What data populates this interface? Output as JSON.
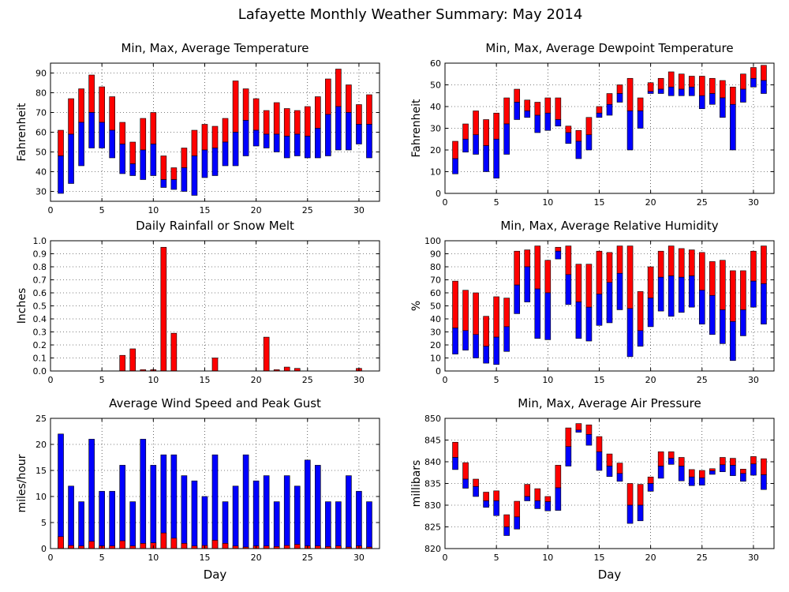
{
  "page_title": "Lafayette Monthly Weather Summary: May 2014",
  "colors": {
    "max": "#ff0000",
    "min": "#0000ff",
    "grid": "#000000",
    "frame": "#000000"
  },
  "chart_data": [
    {
      "id": "temperature",
      "type": "bar",
      "title": "Min, Max, Average Temperature",
      "ylabel": "Fahrenheit",
      "xlabel": "",
      "xlim": [
        0,
        32
      ],
      "ylim": [
        25,
        95
      ],
      "xticks": [
        0,
        5,
        10,
        15,
        20,
        25,
        30
      ],
      "yticks": [
        30,
        40,
        50,
        60,
        70,
        80,
        90
      ],
      "grid": true,
      "days": [
        1,
        2,
        3,
        4,
        5,
        6,
        7,
        8,
        9,
        10,
        11,
        12,
        13,
        14,
        15,
        16,
        17,
        18,
        19,
        20,
        21,
        22,
        23,
        24,
        25,
        26,
        27,
        28,
        29,
        30,
        31
      ],
      "max": [
        61,
        77,
        82,
        89,
        83,
        78,
        65,
        55,
        67,
        70,
        48,
        42,
        52,
        61,
        64,
        63,
        67,
        86,
        82,
        77,
        71,
        75,
        72,
        71,
        73,
        78,
        87,
        92,
        84,
        74,
        79
      ],
      "avg": [
        48,
        59,
        65,
        70,
        65,
        61,
        54,
        44,
        51,
        54,
        36,
        36,
        42,
        48,
        51,
        52,
        55,
        60,
        66,
        61,
        59,
        59,
        58,
        59,
        58,
        62,
        69,
        73,
        70,
        64,
        64
      ],
      "min": [
        29,
        34,
        43,
        52,
        52,
        47,
        39,
        38,
        36,
        38,
        32,
        31,
        30,
        28,
        37,
        38,
        43,
        43,
        48,
        53,
        52,
        50,
        47,
        48,
        47,
        47,
        48,
        51,
        51,
        54,
        47
      ]
    },
    {
      "id": "dewpoint",
      "type": "bar",
      "title": "Min, Max, Average Dewpoint Temperature",
      "ylabel": "Fahrenheit",
      "xlabel": "",
      "xlim": [
        0,
        32
      ],
      "ylim": [
        0,
        60
      ],
      "xticks": [
        0,
        5,
        10,
        15,
        20,
        25,
        30
      ],
      "yticks": [
        0,
        10,
        20,
        30,
        40,
        50,
        60
      ],
      "grid": true,
      "days": [
        1,
        2,
        3,
        4,
        5,
        6,
        7,
        8,
        9,
        10,
        11,
        12,
        13,
        14,
        15,
        16,
        17,
        18,
        19,
        20,
        21,
        22,
        23,
        24,
        25,
        26,
        27,
        28,
        29,
        30,
        31
      ],
      "max": [
        24,
        32,
        38,
        34,
        37,
        44,
        48,
        43,
        42,
        44,
        44,
        31,
        29,
        35,
        40,
        46,
        50,
        53,
        44,
        51,
        53,
        56,
        55,
        54,
        54,
        53,
        52,
        49,
        55,
        58,
        59
      ],
      "avg": [
        16,
        25,
        27,
        22,
        25,
        32,
        42,
        38,
        36,
        37,
        34,
        28,
        24,
        27,
        37,
        41,
        46,
        38,
        38,
        47,
        48,
        49,
        48,
        49,
        45,
        46,
        44,
        41,
        48,
        53,
        52
      ],
      "min": [
        9,
        19,
        18,
        10,
        7,
        18,
        34,
        35,
        28,
        29,
        31,
        23,
        16,
        20,
        35,
        36,
        42,
        20,
        30,
        46,
        46,
        45,
        45,
        45,
        39,
        41,
        35,
        20,
        42,
        49,
        46
      ]
    },
    {
      "id": "rainfall",
      "type": "bar",
      "title": "Daily Rainfall or Snow Melt",
      "ylabel": "Inches",
      "xlabel": "",
      "xlim": [
        0,
        32
      ],
      "ylim": [
        0,
        1.0
      ],
      "xticks": [
        0,
        5,
        10,
        15,
        20,
        25,
        30
      ],
      "yticks": [
        0.0,
        0.1,
        0.2,
        0.3,
        0.4,
        0.5,
        0.6,
        0.7,
        0.8,
        0.9,
        1.0
      ],
      "ytick_labels": [
        "0.0",
        "0.1",
        "0.2",
        "0.3",
        "0.4",
        "0.5",
        "0.6",
        "0.7",
        "0.8",
        "0.9",
        "1.0"
      ],
      "grid": true,
      "days": [
        1,
        2,
        3,
        4,
        5,
        6,
        7,
        8,
        9,
        10,
        11,
        12,
        13,
        14,
        15,
        16,
        17,
        18,
        19,
        20,
        21,
        22,
        23,
        24,
        25,
        26,
        27,
        28,
        29,
        30,
        31
      ],
      "values": [
        0,
        0,
        0,
        0,
        0,
        0,
        0.12,
        0.17,
        0.01,
        0.01,
        0.95,
        0.29,
        0,
        0,
        0,
        0.1,
        0,
        0,
        0,
        0,
        0.26,
        0.01,
        0.03,
        0.02,
        0,
        0,
        0,
        0,
        0,
        0.02,
        0
      ]
    },
    {
      "id": "humidity",
      "type": "bar",
      "title": "Min, Max, Average Relative Humidity",
      "ylabel": "%",
      "xlabel": "",
      "xlim": [
        0,
        32
      ],
      "ylim": [
        0,
        100
      ],
      "xticks": [
        0,
        5,
        10,
        15,
        20,
        25,
        30
      ],
      "yticks": [
        0,
        10,
        20,
        30,
        40,
        50,
        60,
        70,
        80,
        90,
        100
      ],
      "grid": true,
      "days": [
        1,
        2,
        3,
        4,
        5,
        6,
        7,
        8,
        9,
        10,
        11,
        12,
        13,
        14,
        15,
        16,
        17,
        18,
        19,
        20,
        21,
        22,
        23,
        24,
        25,
        26,
        27,
        28,
        29,
        30,
        31
      ],
      "max": [
        69,
        62,
        60,
        42,
        57,
        56,
        92,
        93,
        96,
        85,
        95,
        96,
        82,
        82,
        92,
        91,
        96,
        96,
        61,
        80,
        92,
        96,
        94,
        93,
        91,
        84,
        85,
        77,
        77,
        92,
        96
      ],
      "avg": [
        33,
        31,
        28,
        19,
        26,
        34,
        66,
        80,
        63,
        60,
        92,
        74,
        53,
        49,
        59,
        68,
        75,
        48,
        31,
        56,
        72,
        73,
        72,
        73,
        62,
        58,
        47,
        38,
        47,
        69,
        67
      ],
      "min": [
        13,
        16,
        10,
        6,
        5,
        15,
        44,
        53,
        25,
        24,
        86,
        51,
        25,
        23,
        35,
        37,
        47,
        11,
        19,
        34,
        46,
        42,
        45,
        49,
        36,
        28,
        21,
        8,
        27,
        49,
        36
      ]
    },
    {
      "id": "wind",
      "type": "bar",
      "title": "Average Wind Speed and Peak Gust",
      "ylabel": "miles/hour",
      "xlabel": "Day",
      "xlim": [
        0,
        32
      ],
      "ylim": [
        0,
        25
      ],
      "xticks": [
        0,
        5,
        10,
        15,
        20,
        25,
        30
      ],
      "yticks": [
        0,
        5,
        10,
        15,
        20,
        25
      ],
      "grid": true,
      "days": [
        1,
        2,
        3,
        4,
        5,
        6,
        7,
        8,
        9,
        10,
        11,
        12,
        13,
        14,
        15,
        16,
        17,
        18,
        19,
        20,
        21,
        22,
        23,
        24,
        25,
        26,
        27,
        28,
        29,
        30,
        31
      ],
      "gust": [
        22,
        12,
        9,
        21,
        11,
        11,
        16,
        9,
        21,
        16,
        18,
        18,
        14,
        13,
        10,
        18,
        9,
        12,
        18,
        13,
        14,
        9,
        14,
        12,
        17,
        16,
        9,
        9,
        14,
        11,
        9
      ],
      "avg": [
        2.3,
        0.6,
        0.5,
        1.4,
        0.5,
        0.5,
        1.5,
        0.5,
        1.0,
        1.1,
        3.0,
        2.0,
        1.0,
        0.5,
        0.6,
        1.6,
        1.0,
        0.5,
        0.3,
        0.5,
        0.5,
        0.4,
        0.6,
        0.8,
        0.5,
        0.5,
        0.4,
        0.5,
        0.3,
        0.5,
        0.3
      ]
    },
    {
      "id": "pressure",
      "type": "bar",
      "title": "Min, Max, Average Air Pressure",
      "ylabel": "millibars",
      "xlabel": "Day",
      "xlim": [
        0,
        32
      ],
      "ylim": [
        820,
        850
      ],
      "xticks": [
        0,
        5,
        10,
        15,
        20,
        25,
        30
      ],
      "yticks": [
        820,
        825,
        830,
        835,
        840,
        845,
        850
      ],
      "grid": true,
      "days": [
        1,
        2,
        3,
        4,
        5,
        6,
        7,
        8,
        9,
        10,
        11,
        12,
        13,
        14,
        15,
        16,
        17,
        18,
        19,
        20,
        21,
        22,
        23,
        24,
        25,
        26,
        27,
        28,
        29,
        30,
        31
      ],
      "max": [
        844.5,
        839.8,
        836.0,
        833.0,
        833.3,
        827.8,
        830.9,
        834.8,
        833.8,
        832.0,
        839.2,
        847.8,
        848.8,
        848.5,
        845.8,
        841.8,
        839.7,
        835.0,
        834.8,
        836.5,
        842.3,
        842.3,
        841.0,
        838.2,
        838.0,
        838.4,
        841.0,
        840.8,
        838.3,
        841.2,
        840.7
      ],
      "avg": [
        841.0,
        836.0,
        834.3,
        831.0,
        831.0,
        825.0,
        827.3,
        832.0,
        831.0,
        830.8,
        834.0,
        843.5,
        847.3,
        846.3,
        842.3,
        839.0,
        837.3,
        830.0,
        830.0,
        835.0,
        839.0,
        840.8,
        839.0,
        836.5,
        836.3,
        837.9,
        839.3,
        839.2,
        837.3,
        839.5,
        837.0
      ],
      "min": [
        838.2,
        833.9,
        832.0,
        829.5,
        827.6,
        823.0,
        824.5,
        831.0,
        829.2,
        828.7,
        828.8,
        839.0,
        846.8,
        843.8,
        838.0,
        836.6,
        835.5,
        825.8,
        826.4,
        833.2,
        836.2,
        839.4,
        835.6,
        834.5,
        834.6,
        837.1,
        837.7,
        836.8,
        835.5,
        836.9,
        833.6
      ]
    }
  ]
}
